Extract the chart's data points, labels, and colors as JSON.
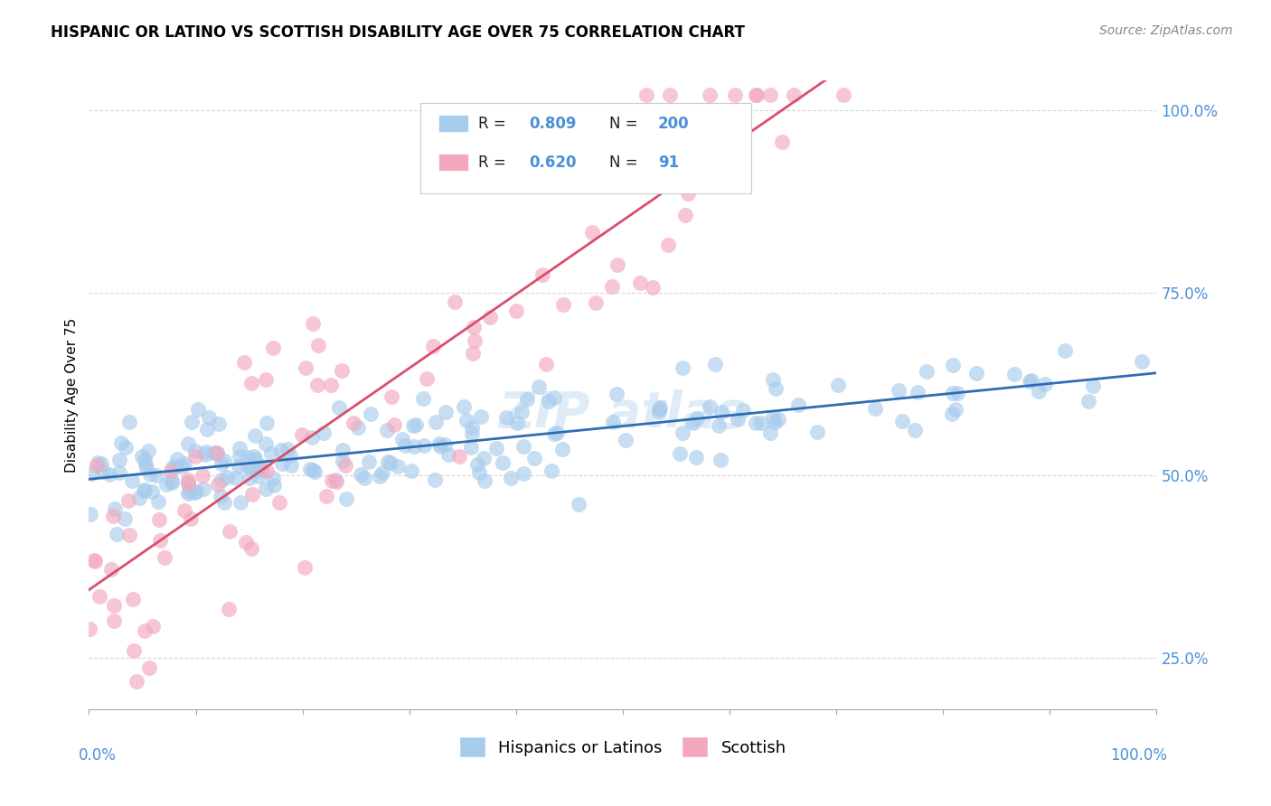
{
  "title": "HISPANIC OR LATINO VS SCOTTISH DISABILITY AGE OVER 75 CORRELATION CHART",
  "source": "Source: ZipAtlas.com",
  "ylabel": "Disability Age Over 75",
  "xlim": [
    0,
    1
  ],
  "ylim": [
    0.18,
    1.04
  ],
  "ytick_positions": [
    0.25,
    0.5,
    0.75,
    1.0
  ],
  "ytick_labels": [
    "25.0%",
    "50.0%",
    "75.0%",
    "100.0%"
  ],
  "blue_R": 0.809,
  "blue_N": 200,
  "pink_R": 0.62,
  "pink_N": 91,
  "blue_color": "#A8CCEC",
  "pink_color": "#F4A8BE",
  "blue_line_color": "#2E6DB4",
  "pink_line_color": "#D94F6A",
  "legend_label_blue": "Hispanics or Latinos",
  "legend_label_pink": "Scottish",
  "watermark": "ZIP atlas",
  "title_fontsize": 12,
  "source_fontsize": 10,
  "axis_label_color": "#4A90D9",
  "grid_color": "#CCCCCC",
  "background_color": "#FFFFFF"
}
